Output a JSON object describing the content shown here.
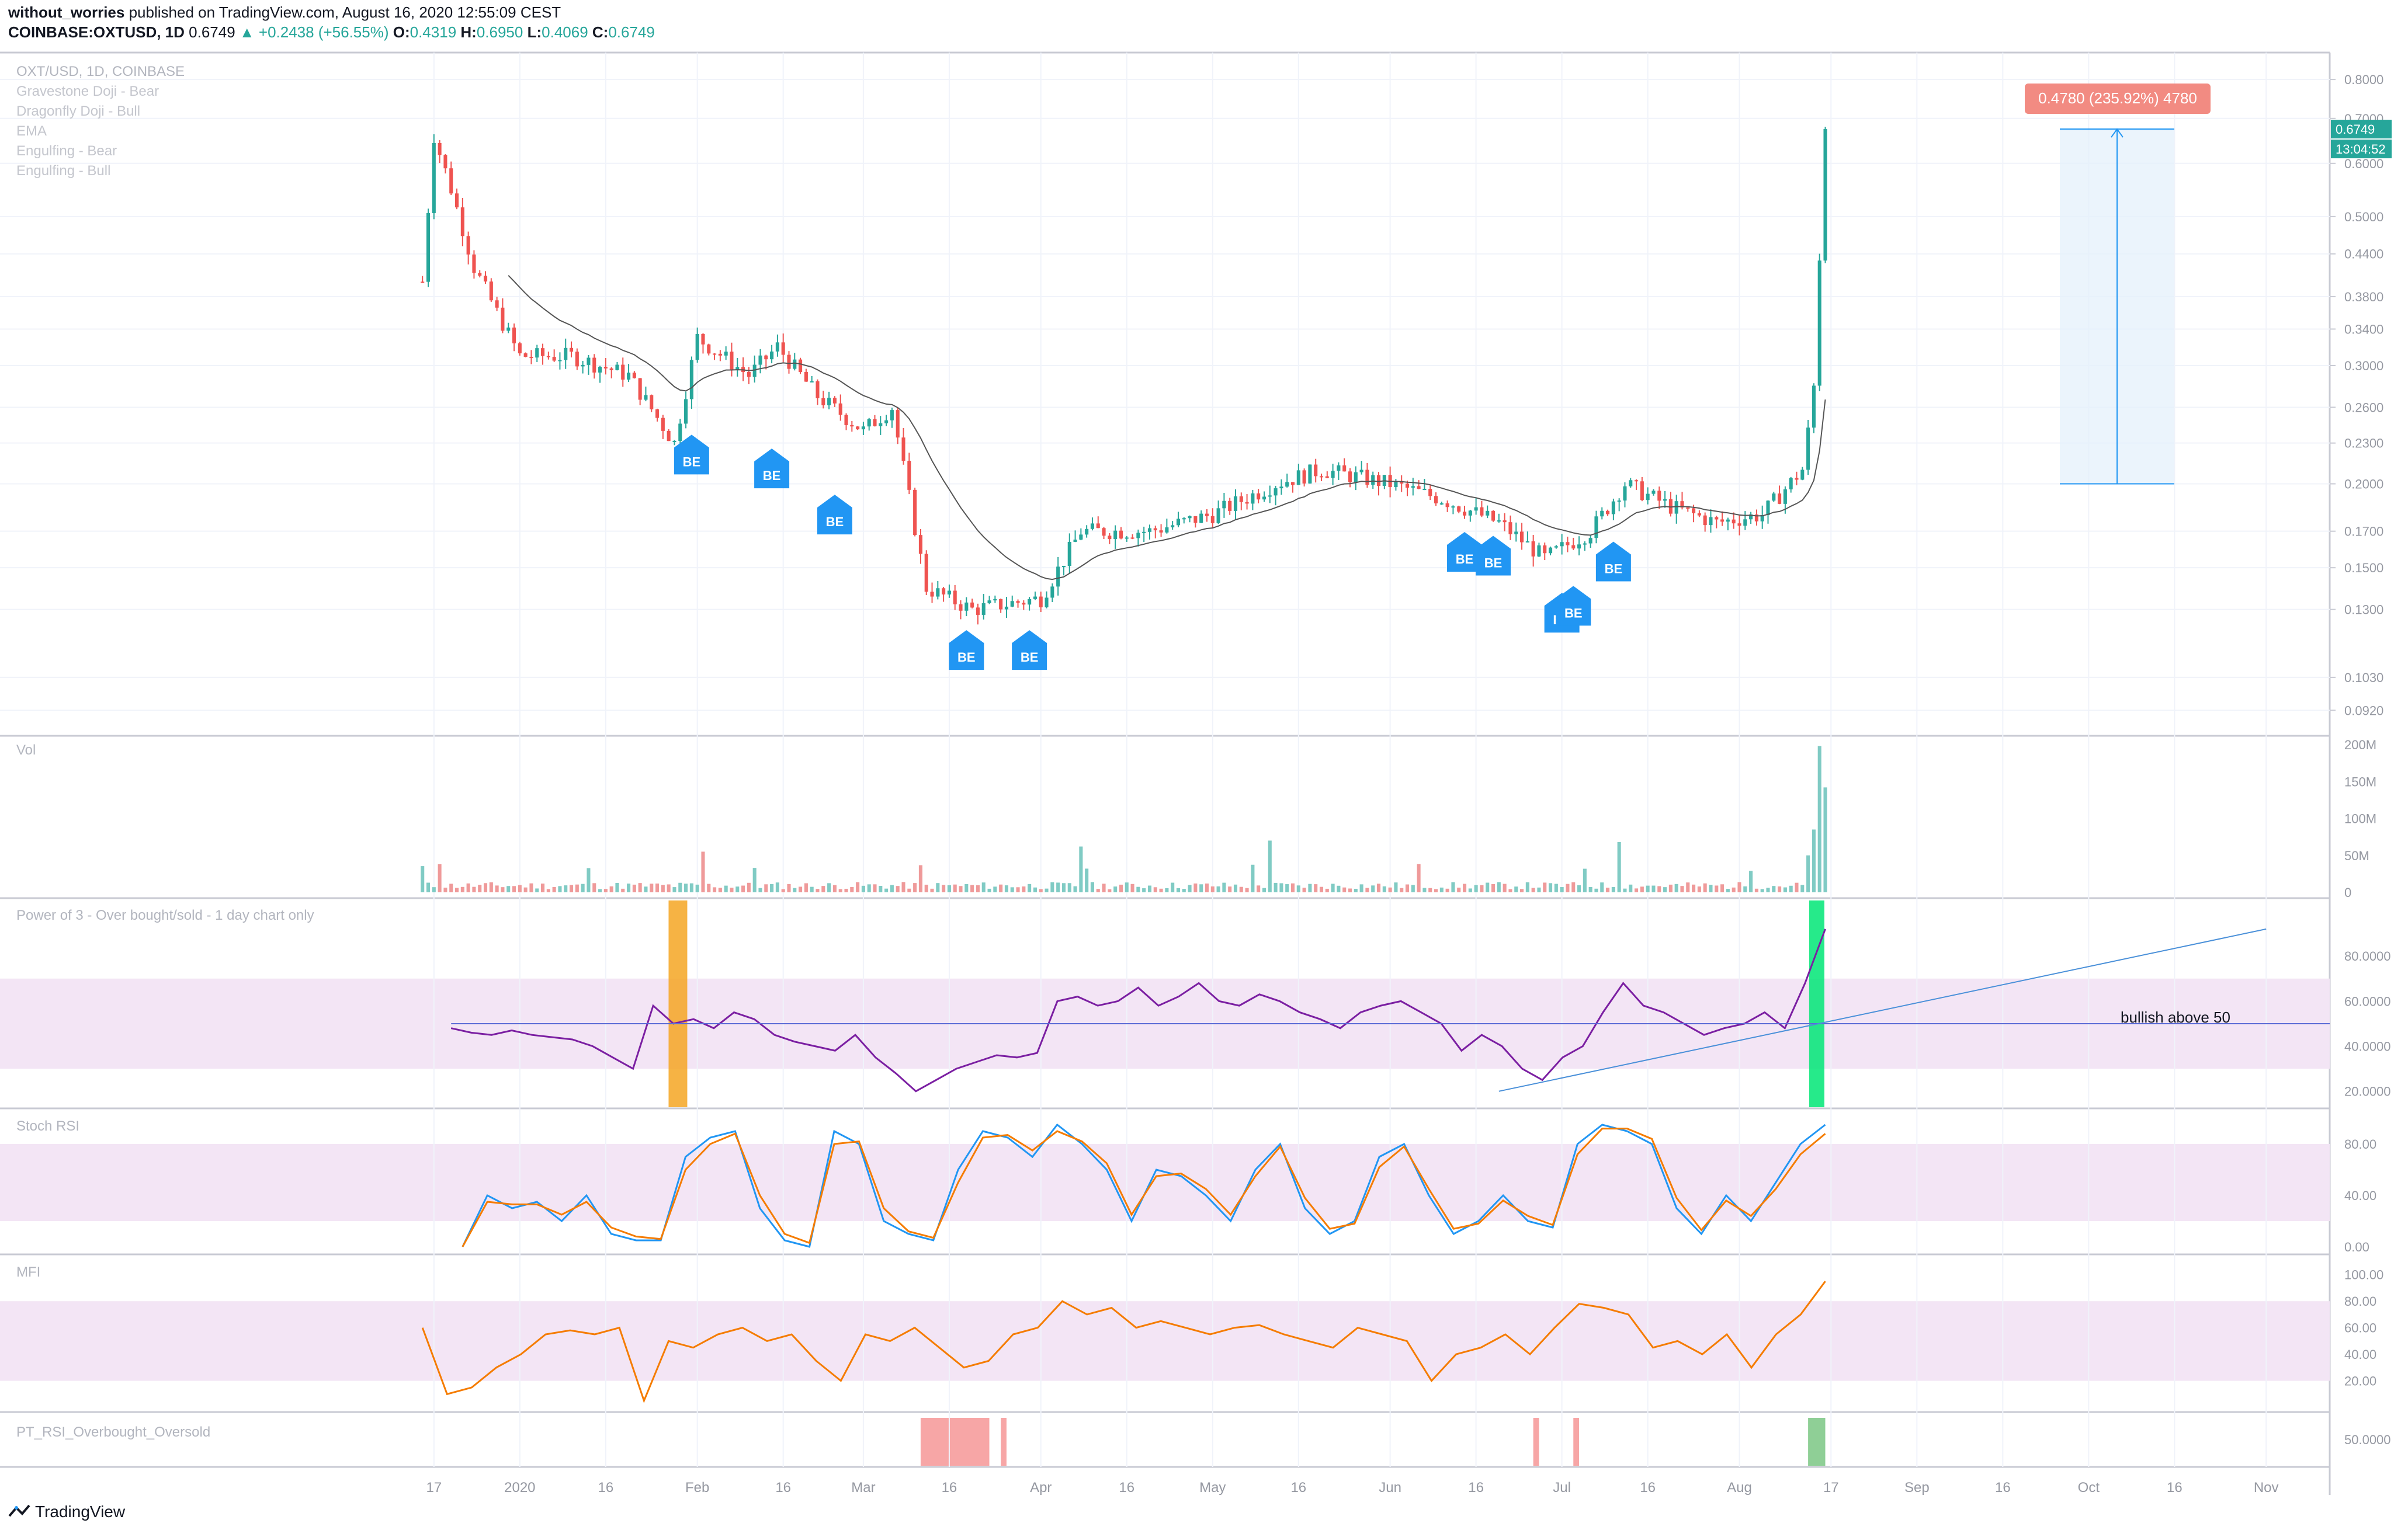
{
  "header": {
    "author": "without_worries",
    "published": "published on TradingView.com, August 16, 2020 12:55:09 CEST",
    "symbol": "COINBASE:OXTUSD, 1D",
    "last": "0.6749",
    "change": "▲ +0.2438 (+56.55%)",
    "o_label": "O:",
    "o": "0.4319",
    "h_label": "H:",
    "h": "0.6950",
    "l_label": "L:",
    "l": "0.4069",
    "c_label": "C:",
    "c": "0.6749"
  },
  "main_legend": [
    "OXT/USD, 1D, COINBASE",
    "Gravestone Doji - Bear",
    "Dragonfly Doji - Bull",
    "EMA",
    "Engulfing - Bear",
    "Engulfing - Bull"
  ],
  "pane_titles": {
    "vol": "Vol",
    "power3": "Power of 3 - Over bought/sold - 1 day chart only",
    "stoch": "Stoch RSI",
    "mfi": "MFI",
    "pt": "PT_RSI_Overbought_Oversold"
  },
  "annotations": {
    "measure": "0.4780 (235.92%) 4780",
    "price_tag": "0.6749",
    "countdown": "13:04:52",
    "bullish": "bullish above 50",
    "be": "BE"
  },
  "footer": {
    "brand": "TradingView"
  },
  "colors": {
    "up": "#26a69a",
    "down": "#ef5350",
    "purple": "#7b1fa2",
    "orange": "#f57c00",
    "blue": "#2196f3",
    "band": "#f3e5f5"
  },
  "chart_data": [
    {
      "type": "candlestick",
      "title": "OXT/USD, 1D, COINBASE",
      "x_ticks": [
        "17",
        "2020",
        "16",
        "Feb",
        "16",
        "Mar",
        "16",
        "Apr",
        "16",
        "May",
        "16",
        "Jun",
        "16",
        "Jul",
        "16",
        "Aug",
        "17",
        "Sep",
        "16",
        "Oct",
        "16",
        "Nov"
      ],
      "y_ticks": [
        "0.8000",
        "0.7000",
        "0.6000",
        "0.5000",
        "0.4400",
        "0.3800",
        "0.3400",
        "0.3000",
        "0.2600",
        "0.2300",
        "0.2000",
        "0.1700",
        "0.1500",
        "0.1300",
        "0.1030",
        "0.0920"
      ],
      "scale": "log",
      "ylim": [
        0.086,
        0.86
      ],
      "approx_close": [
        {
          "x": "2019-12-15",
          "y": 0.4
        },
        {
          "x": "2019-12-17",
          "y": 0.66
        },
        {
          "x": "2019-12-20",
          "y": 0.55
        },
        {
          "x": "2019-12-24",
          "y": 0.42
        },
        {
          "x": "2019-12-28",
          "y": 0.36
        },
        {
          "x": "2020-01-01",
          "y": 0.31
        },
        {
          "x": "2020-01-10",
          "y": 0.31
        },
        {
          "x": "2020-01-20",
          "y": 0.29
        },
        {
          "x": "2020-01-28",
          "y": 0.23
        },
        {
          "x": "2020-02-01",
          "y": 0.33
        },
        {
          "x": "2020-02-10",
          "y": 0.29
        },
        {
          "x": "2020-02-15",
          "y": 0.32
        },
        {
          "x": "2020-02-22",
          "y": 0.27
        },
        {
          "x": "2020-03-01",
          "y": 0.24
        },
        {
          "x": "2020-03-06",
          "y": 0.26
        },
        {
          "x": "2020-03-12",
          "y": 0.14
        },
        {
          "x": "2020-03-20",
          "y": 0.13
        },
        {
          "x": "2020-04-01",
          "y": 0.135
        },
        {
          "x": "2020-04-08",
          "y": 0.17
        },
        {
          "x": "2020-04-20",
          "y": 0.17
        },
        {
          "x": "2020-05-01",
          "y": 0.18
        },
        {
          "x": "2020-05-12",
          "y": 0.2
        },
        {
          "x": "2020-05-20",
          "y": 0.21
        },
        {
          "x": "2020-06-01",
          "y": 0.2
        },
        {
          "x": "2020-06-10",
          "y": 0.19
        },
        {
          "x": "2020-06-20",
          "y": 0.175
        },
        {
          "x": "2020-06-28",
          "y": 0.155
        },
        {
          "x": "2020-07-06",
          "y": 0.17
        },
        {
          "x": "2020-07-12",
          "y": 0.2
        },
        {
          "x": "2020-07-20",
          "y": 0.185
        },
        {
          "x": "2020-07-28",
          "y": 0.175
        },
        {
          "x": "2020-08-05",
          "y": 0.18
        },
        {
          "x": "2020-08-12",
          "y": 0.21
        },
        {
          "x": "2020-08-14",
          "y": 0.28
        },
        {
          "x": "2020-08-15",
          "y": 0.43
        },
        {
          "x": "2020-08-16",
          "y": 0.6749
        }
      ],
      "measure": {
        "from": 0.2,
        "to": 0.6749,
        "label": "0.4780 (235.92%) 4780"
      }
    },
    {
      "type": "bar",
      "title": "Vol",
      "y_ticks": [
        "200M",
        "150M",
        "100M",
        "50M",
        "0"
      ],
      "ylim": [
        0,
        200
      ]
    },
    {
      "type": "line",
      "title": "Power of 3 - Over bought/sold - 1 day chart only",
      "y_ticks": [
        "80.0000",
        "60.0000",
        "40.0000",
        "20.0000"
      ],
      "band": [
        30,
        70
      ],
      "hline": 50,
      "annotation": "bullish above 50",
      "series": [
        {
          "values": [
            48,
            46,
            45,
            47,
            45,
            44,
            43,
            40,
            35,
            30,
            58,
            50,
            52,
            48,
            55,
            52,
            45,
            42,
            40,
            38,
            45,
            35,
            28,
            20,
            25,
            30,
            33,
            36,
            35,
            37,
            60,
            62,
            58,
            60,
            66,
            58,
            62,
            68,
            60,
            58,
            63,
            60,
            55,
            52,
            48,
            55,
            58,
            60,
            55,
            50,
            38,
            45,
            40,
            30,
            25,
            35,
            40,
            55,
            68,
            58,
            55,
            50,
            45,
            48,
            50,
            55,
            48,
            68,
            92
          ]
        }
      ]
    },
    {
      "type": "line",
      "title": "Stoch RSI",
      "y_ticks": [
        "80.00",
        "40.00",
        "0.00"
      ],
      "band": [
        20,
        80
      ],
      "series": [
        {
          "values": [
            0,
            40,
            30,
            35,
            20,
            40,
            10,
            5,
            5,
            70,
            85,
            90,
            30,
            5,
            0,
            90,
            80,
            20,
            10,
            5,
            60,
            90,
            85,
            70,
            95,
            80,
            60,
            20,
            60,
            55,
            40,
            20,
            60,
            80,
            30,
            10,
            20,
            70,
            80,
            40,
            10,
            20,
            40,
            20,
            15,
            80,
            95,
            90,
            80,
            30,
            10,
            40,
            20,
            50,
            80,
            95
          ]
        },
        {
          "values": [
            0,
            35,
            33,
            33,
            25,
            35,
            15,
            8,
            6,
            60,
            80,
            88,
            40,
            10,
            3,
            80,
            82,
            30,
            12,
            7,
            50,
            85,
            87,
            75,
            90,
            82,
            65,
            25,
            55,
            57,
            45,
            25,
            55,
            78,
            38,
            14,
            18,
            62,
            78,
            45,
            14,
            18,
            36,
            24,
            17,
            72,
            92,
            92,
            84,
            38,
            13,
            36,
            24,
            45,
            72,
            88
          ]
        }
      ]
    },
    {
      "type": "line",
      "title": "MFI",
      "y_ticks": [
        "100.00",
        "80.00",
        "60.00",
        "40.00",
        "20.00"
      ],
      "band": [
        20,
        80
      ],
      "series": [
        {
          "values": [
            60,
            10,
            15,
            30,
            40,
            55,
            58,
            55,
            60,
            5,
            50,
            45,
            55,
            60,
            50,
            55,
            35,
            20,
            55,
            50,
            60,
            45,
            30,
            35,
            55,
            60,
            80,
            70,
            75,
            60,
            65,
            60,
            55,
            60,
            62,
            55,
            50,
            45,
            60,
            55,
            50,
            20,
            40,
            45,
            55,
            40,
            60,
            78,
            75,
            70,
            45,
            50,
            40,
            55,
            30,
            55,
            70,
            95
          ]
        }
      ]
    },
    {
      "type": "bar",
      "title": "PT_RSI_Overbought_Oversold",
      "y_ticks": [
        "50.0000"
      ]
    }
  ]
}
